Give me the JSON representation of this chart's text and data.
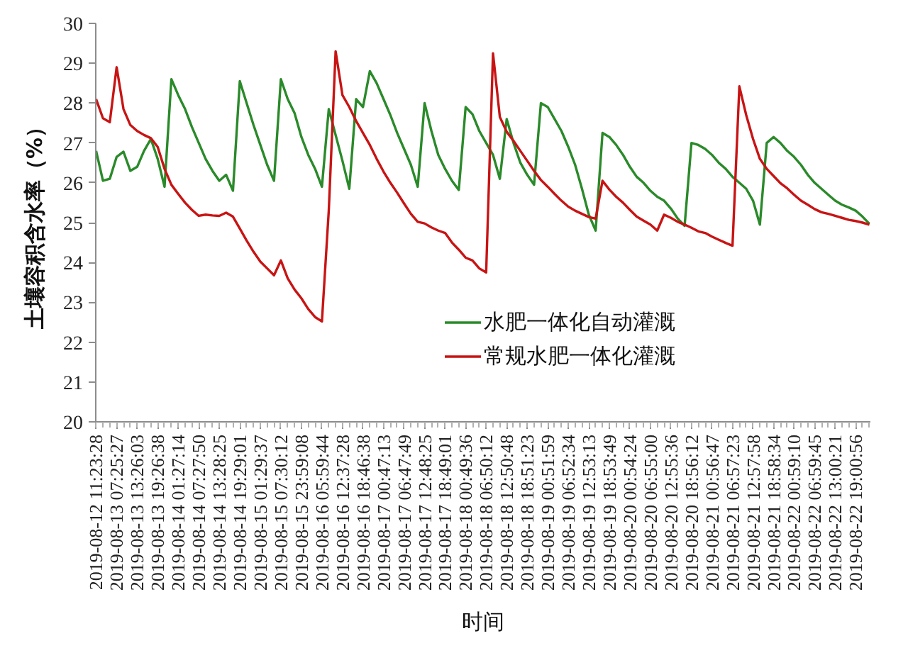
{
  "chart_data": {
    "type": "line",
    "xlabel": "时间",
    "ylabel": "土壤容积含水率（%）",
    "ylim": [
      20,
      30
    ],
    "yticks": [
      20,
      21,
      22,
      23,
      24,
      25,
      26,
      27,
      28,
      29,
      30
    ],
    "grid": false,
    "legend": "bottom right",
    "categories": [
      "2019-08-12 11:23:28",
      null,
      null,
      "2019-08-13 07:25:27",
      null,
      null,
      "2019-08-13 13:26:03",
      null,
      null,
      "2019-08-13 19:26:38",
      null,
      null,
      "2019-08-14 01:27:14",
      null,
      null,
      "2019-08-14 07:27:50",
      null,
      null,
      "2019-08-14 13:28:25",
      null,
      null,
      "2019-08-14 19:29:01",
      null,
      null,
      "2019-08-15 01:29:37",
      null,
      null,
      "2019-08-15 07:30:12",
      null,
      null,
      "2019-08-15 23:59:08",
      null,
      null,
      "2019-08-16 05:59:44",
      null,
      null,
      "2019-08-16 12:37:28",
      null,
      null,
      "2019-08-16 18:46:38",
      null,
      null,
      "2019-08-17 00:47:13",
      null,
      null,
      "2019-08-17 06:47:49",
      null,
      null,
      "2019-08-17 12:48:25",
      null,
      null,
      "2019-08-17 18:49:01",
      null,
      null,
      "2019-08-18 00:49:36",
      null,
      null,
      "2019-08-18 06:50:12",
      null,
      null,
      "2019-08-18 12:50:48",
      null,
      null,
      "2019-08-18 18:51:23",
      null,
      null,
      "2019-08-19 00:51:59",
      null,
      null,
      "2019-08-19 06:52:34",
      null,
      null,
      "2019-08-19 12:53:13",
      null,
      null,
      "2019-08-19 18:53:49",
      null,
      null,
      "2019-08-20 00:54:24",
      null,
      null,
      "2019-08-20 06:55:00",
      null,
      null,
      "2019-08-20 12:55:36",
      null,
      null,
      "2019-08-20 18:56:12",
      null,
      null,
      "2019-08-21 00:56:47",
      null,
      null,
      "2019-08-21 06:57:23",
      null,
      null,
      "2019-08-21 12:57:58",
      null,
      null,
      "2019-08-21 18:58:34",
      null,
      null,
      "2019-08-22 00:59:10",
      null,
      null,
      "2019-08-22 06:59:45",
      null,
      null,
      "2019-08-22 13:00:21",
      null,
      null,
      "2019-08-22 19:00:56",
      null,
      null
    ],
    "series": [
      {
        "name": "水肥一体化自动灌溉",
        "color": "#2a8a2a",
        "values": [
          26.8,
          26.05,
          26.1,
          26.65,
          26.78,
          26.3,
          26.4,
          26.8,
          27.1,
          26.6,
          25.9,
          28.6,
          28.2,
          27.85,
          27.4,
          27.0,
          26.6,
          26.3,
          26.05,
          26.2,
          25.8,
          28.55,
          28.0,
          27.45,
          26.95,
          26.45,
          26.05,
          28.6,
          28.1,
          27.75,
          27.15,
          26.7,
          26.35,
          25.9,
          27.85,
          27.2,
          26.55,
          25.85,
          28.1,
          27.9,
          28.8,
          28.5,
          28.1,
          27.7,
          27.25,
          26.85,
          26.45,
          25.9,
          28.0,
          27.3,
          26.7,
          26.35,
          26.05,
          25.82,
          27.9,
          27.72,
          27.3,
          27.0,
          26.7,
          26.1,
          27.6,
          27.0,
          26.5,
          26.2,
          25.95,
          28.0,
          27.9,
          27.6,
          27.3,
          26.9,
          26.45,
          25.85,
          25.2,
          24.8,
          27.25,
          27.15,
          26.95,
          26.7,
          26.4,
          26.15,
          26.0,
          25.8,
          25.65,
          25.55,
          25.35,
          25.1,
          24.92,
          27.0,
          26.95,
          26.85,
          26.7,
          26.5,
          26.35,
          26.15,
          26.0,
          25.85,
          25.55,
          24.95,
          27.0,
          27.15,
          27.0,
          26.8,
          26.65,
          26.45,
          26.2,
          26.0,
          25.85,
          25.7,
          25.55,
          25.45,
          25.38,
          25.3,
          25.15,
          24.97
        ]
      },
      {
        "name": "常规水肥一体化灌溉",
        "color": "#c81414",
        "values": [
          28.1,
          27.62,
          27.52,
          28.9,
          27.85,
          27.45,
          27.3,
          27.2,
          27.12,
          26.9,
          26.35,
          25.95,
          25.72,
          25.5,
          25.32,
          25.17,
          25.2,
          25.18,
          25.17,
          25.25,
          25.15,
          24.85,
          24.55,
          24.27,
          24.02,
          23.85,
          23.68,
          24.05,
          23.6,
          23.32,
          23.1,
          22.83,
          22.63,
          22.52,
          25.3,
          29.3,
          28.2,
          27.9,
          27.55,
          27.25,
          26.95,
          26.6,
          26.28,
          26.0,
          25.75,
          25.48,
          25.22,
          25.02,
          24.98,
          24.88,
          24.8,
          24.74,
          24.5,
          24.32,
          24.12,
          24.05,
          23.85,
          23.75,
          29.25,
          27.65,
          27.28,
          27.05,
          26.8,
          26.55,
          26.3,
          26.07,
          25.9,
          25.72,
          25.55,
          25.4,
          25.3,
          25.22,
          25.14,
          25.1,
          26.05,
          25.83,
          25.65,
          25.5,
          25.32,
          25.15,
          25.05,
          24.95,
          24.8,
          25.2,
          25.12,
          25.02,
          24.95,
          24.87,
          24.78,
          24.74,
          24.65,
          24.57,
          24.49,
          24.42,
          28.42,
          27.7,
          27.1,
          26.6,
          26.35,
          26.17,
          25.99,
          25.86,
          25.7,
          25.55,
          25.45,
          25.34,
          25.26,
          25.22,
          25.17,
          25.12,
          25.07,
          25.04,
          25.0,
          24.95
        ]
      }
    ]
  }
}
